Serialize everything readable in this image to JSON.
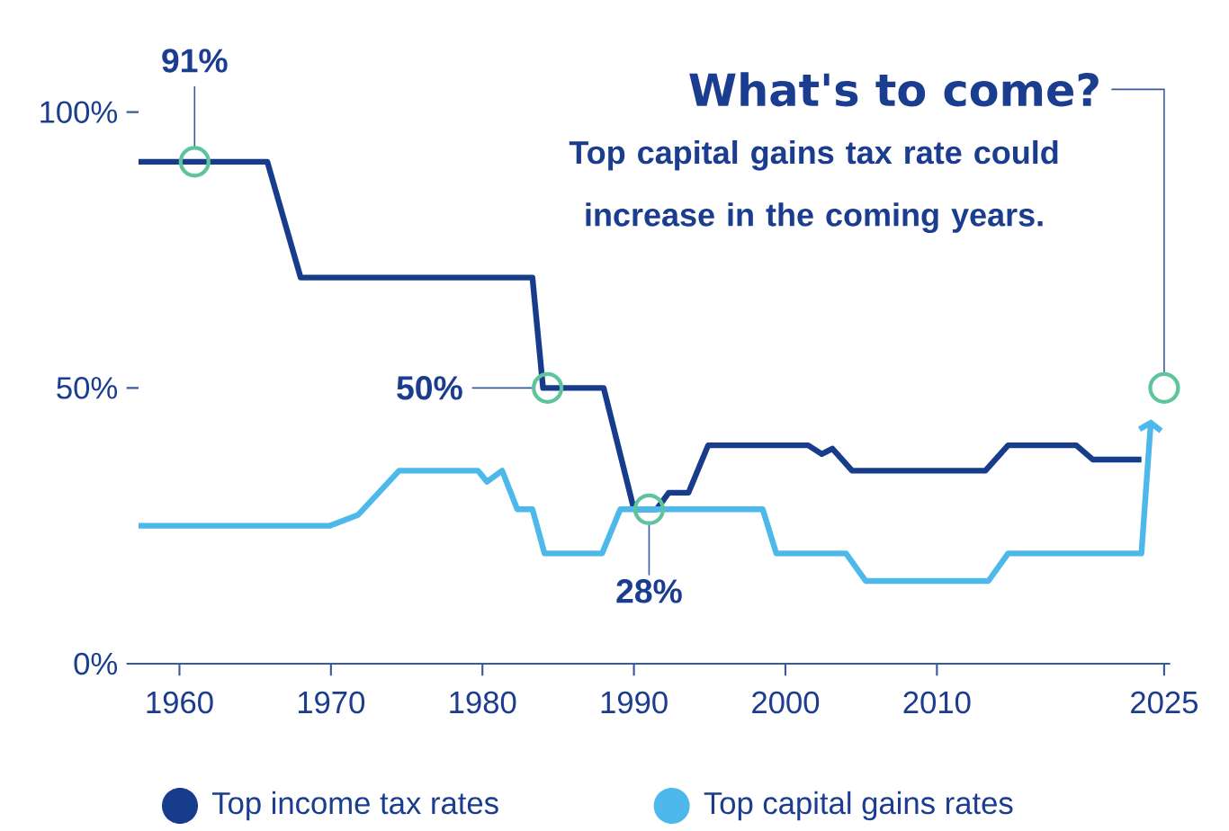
{
  "chart_data": {
    "type": "line",
    "series": [
      {
        "name": "Top income tax rates",
        "color": "#173c8c",
        "x": [
          1957.3,
          1965.8,
          1968,
          1983.3,
          1984,
          1988,
          1990,
          1991.5,
          1992.3,
          1993.6,
          1994.9,
          2001.5,
          2002.4,
          2003.1,
          2004.4,
          2013.2,
          2014.7,
          2019.2,
          2020.3,
          2023.5
        ],
        "values": [
          91,
          91,
          70,
          70,
          50,
          50,
          28,
          28,
          31,
          31,
          39.6,
          39.6,
          38,
          39,
          35,
          35,
          39.6,
          39.6,
          37,
          37
        ]
      },
      {
        "name": "Top capital gains rates",
        "color": "#4db8ea",
        "x": [
          1957.3,
          1969.9,
          1971.8,
          1974.5,
          1979.7,
          1980.3,
          1981.3,
          1982.3,
          1983.3,
          1984.1,
          1987.9,
          1989.1,
          1998.5,
          1999.4,
          2004,
          2005.3,
          2013.4,
          2014.7,
          2023.5,
          2024.1
        ],
        "values": [
          25,
          25,
          27,
          35,
          35,
          33,
          35,
          28,
          28,
          20,
          20,
          28,
          28,
          20,
          20,
          15,
          15,
          20,
          20,
          43
        ]
      }
    ],
    "xlim": [
      1957.3,
      2025.4
    ],
    "ylim": [
      0,
      100
    ],
    "xticks": [
      1960,
      1970,
      1980,
      1990,
      2000,
      2010,
      2025
    ],
    "yticks": [
      {
        "value": 0,
        "label": "0%"
      },
      {
        "value": 50,
        "label": "50%"
      },
      {
        "value": 100,
        "label": "100%"
      }
    ],
    "annotations": [
      {
        "text": "91%",
        "x": 1961,
        "y": 91
      },
      {
        "text": "50%",
        "x": 1984.3,
        "y": 50
      },
      {
        "text": "28%",
        "x": 1991,
        "y": 28
      },
      {
        "text": "What's to come?",
        "x": 2025,
        "y": 50
      },
      "Top capital gains tax rate could increase in the coming years."
    ],
    "legend": "bottom"
  }
}
